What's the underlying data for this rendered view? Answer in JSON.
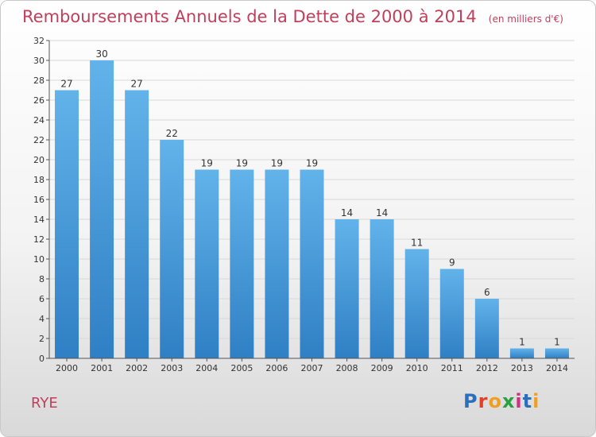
{
  "title": "Remboursements Annuels de la Dette de 2000 à 2014",
  "unit_note": "(en milliers d'€)",
  "commune": "RYE",
  "logo": {
    "text": "Proxiti",
    "letter_colors": [
      "#2a6fbf",
      "#e0402a",
      "#f0a020",
      "#2aa040",
      "#d03080",
      "#2a6fbf",
      "#f0a020"
    ]
  },
  "colors": {
    "bar_top": "#62b3ea",
    "bar_bottom": "#2f7fc4",
    "title": "#c0405c",
    "grid": "#d8d8d8",
    "text": "#333333"
  },
  "chart_data": {
    "type": "bar",
    "title": "Remboursements Annuels de la Dette de 2000 à 2014",
    "categories": [
      "2000",
      "2001",
      "2002",
      "2003",
      "2004",
      "2005",
      "2006",
      "2007",
      "2008",
      "2009",
      "2010",
      "2011",
      "2012",
      "2013",
      "2014"
    ],
    "values": [
      27,
      30,
      27,
      22,
      19,
      19,
      19,
      19,
      14,
      14,
      11,
      9,
      6,
      1,
      1
    ],
    "ylim": [
      0,
      32
    ],
    "yticks": [
      0,
      2,
      4,
      6,
      8,
      10,
      12,
      14,
      16,
      18,
      20,
      22,
      24,
      26,
      28,
      30,
      32
    ],
    "xlabel": "",
    "ylabel": "",
    "grid": true,
    "data_labels": true
  }
}
